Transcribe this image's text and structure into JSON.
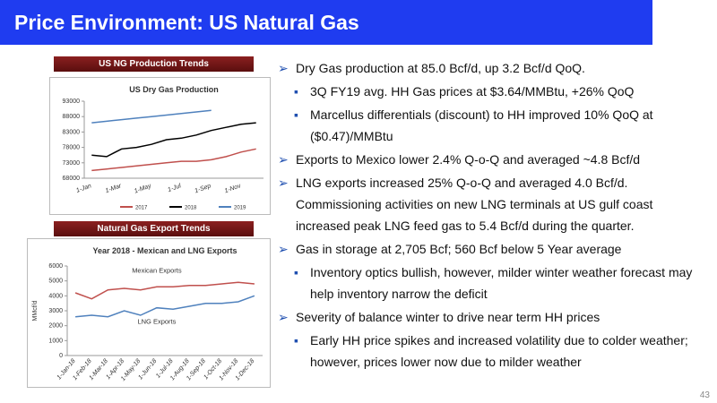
{
  "header": {
    "title": "Price Environment: US Natural Gas"
  },
  "panel_labels": [
    "US NG Production Trends",
    "Natural Gas Export Trends"
  ],
  "chart_data": [
    {
      "type": "line",
      "title": "US Dry Gas Production",
      "categories": [
        "1-Jan",
        null,
        "1-Mar",
        null,
        "1-May",
        null,
        "1-Jul",
        null,
        "1-Sep",
        null,
        "1-Nov",
        null
      ],
      "series": [
        {
          "name": "2017",
          "color": "#c0504d",
          "values": [
            70500,
            71000,
            71500,
            72000,
            72500,
            73000,
            73500,
            73500,
            74000,
            75000,
            76500,
            77500
          ]
        },
        {
          "name": "2018",
          "color": "#000000",
          "values": [
            75500,
            75000,
            77500,
            78000,
            79000,
            80500,
            81000,
            82000,
            83500,
            84500,
            85500,
            86000
          ]
        },
        {
          "name": "2019",
          "color": "#4f81bd",
          "values": [
            86000,
            86500,
            87000,
            87500,
            88000,
            88500,
            89000,
            89500,
            90000,
            null,
            null,
            null
          ]
        }
      ],
      "ylim": [
        68000,
        93000
      ],
      "yticks": [
        68000,
        73000,
        78000,
        83000,
        88000,
        93000
      ],
      "legend": "bottom"
    },
    {
      "type": "line",
      "title": "Year 2018  - Mexican and LNG Exports",
      "y_label": "MMcf/d",
      "categories": [
        "1-Jan-18",
        "1-Feb-18",
        "1-Mar-18",
        "1-Apr-18",
        "1-May-18",
        "1-Jun-18",
        "1-Jul-18",
        "1-Aug-18",
        "1-Sep-18",
        "1-Oct-18",
        "1-Nov-18",
        "1-Dec-18"
      ],
      "series": [
        {
          "name": "Mexican Exports",
          "color": "#c0504d",
          "values": [
            4200,
            3800,
            4400,
            4500,
            4400,
            4600,
            4600,
            4700,
            4700,
            4800,
            4900,
            4800
          ]
        },
        {
          "name": "LNG Exports",
          "color": "#4f81bd",
          "values": [
            2600,
            2700,
            2600,
            3000,
            2700,
            3200,
            3100,
            3300,
            3500,
            3500,
            3600,
            4000
          ]
        }
      ],
      "ylim": [
        0,
        6000
      ],
      "yticks": [
        0,
        1000,
        2000,
        3000,
        4000,
        5000,
        6000
      ],
      "legend": "inline"
    }
  ],
  "bullets": [
    {
      "text": "Dry Gas production at 85.0 Bcf/d, up 3.2 Bcf/d QoQ.",
      "sub": [
        "3Q FY19 avg. HH Gas prices at $3.64/MMBtu, +26% QoQ",
        "Marcellus differentials (discount) to HH improved 10% QoQ at ($0.47)/MMBtu"
      ]
    },
    {
      "text": "Exports to Mexico lower 2.4% Q-o-Q and averaged ~4.8 Bcf/d",
      "sub": []
    },
    {
      "text": "LNG exports increased 25% Q-o-Q and averaged 4.0 Bcf/d. Commissioning activities on new LNG terminals at US gulf coast increased peak LNG feed gas to 5.4 Bcf/d during the quarter.",
      "sub": []
    },
    {
      "text": "Gas in storage at 2,705 Bcf; 560 Bcf below 5 Year average",
      "sub": [
        "Inventory optics bullish, however, milder winter weather forecast may help inventory narrow the deficit"
      ]
    },
    {
      "text": "Severity of balance winter to drive near term HH prices",
      "sub": [
        "Early HH price spikes and increased volatility due to colder weather; however, prices lower now due to milder weather"
      ]
    }
  ],
  "page_number": 43
}
